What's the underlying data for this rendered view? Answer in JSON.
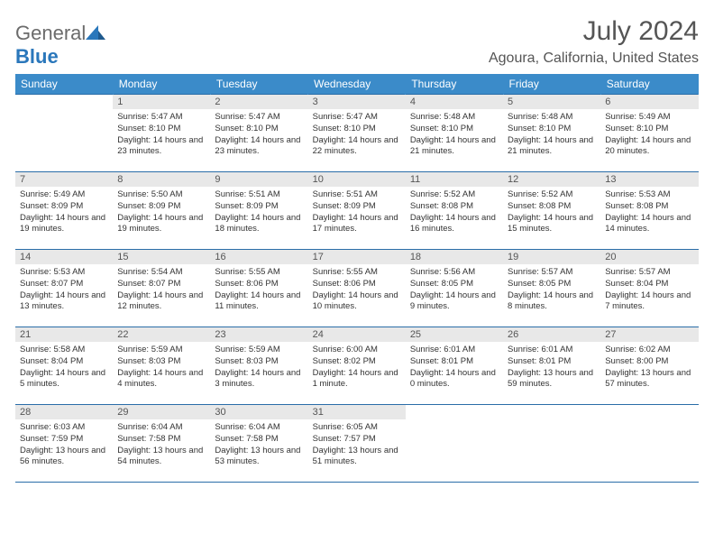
{
  "logo": {
    "text_general": "General",
    "text_blue": "Blue"
  },
  "title": "July 2024",
  "location": "Agoura, California, United States",
  "colors": {
    "header_bg": "#3b8bc9",
    "header_text": "#ffffff",
    "daynum_bg": "#e8e8e8",
    "border": "#2a6da8",
    "body_text": "#333333",
    "title_text": "#555555",
    "logo_gray": "#6b6b6b",
    "logo_blue": "#2a77bb"
  },
  "day_headers": [
    "Sunday",
    "Monday",
    "Tuesday",
    "Wednesday",
    "Thursday",
    "Friday",
    "Saturday"
  ],
  "weeks": [
    [
      {
        "n": "",
        "sunrise": "",
        "sunset": "",
        "daylight": ""
      },
      {
        "n": "1",
        "sunrise": "Sunrise: 5:47 AM",
        "sunset": "Sunset: 8:10 PM",
        "daylight": "Daylight: 14 hours and 23 minutes."
      },
      {
        "n": "2",
        "sunrise": "Sunrise: 5:47 AM",
        "sunset": "Sunset: 8:10 PM",
        "daylight": "Daylight: 14 hours and 23 minutes."
      },
      {
        "n": "3",
        "sunrise": "Sunrise: 5:47 AM",
        "sunset": "Sunset: 8:10 PM",
        "daylight": "Daylight: 14 hours and 22 minutes."
      },
      {
        "n": "4",
        "sunrise": "Sunrise: 5:48 AM",
        "sunset": "Sunset: 8:10 PM",
        "daylight": "Daylight: 14 hours and 21 minutes."
      },
      {
        "n": "5",
        "sunrise": "Sunrise: 5:48 AM",
        "sunset": "Sunset: 8:10 PM",
        "daylight": "Daylight: 14 hours and 21 minutes."
      },
      {
        "n": "6",
        "sunrise": "Sunrise: 5:49 AM",
        "sunset": "Sunset: 8:10 PM",
        "daylight": "Daylight: 14 hours and 20 minutes."
      }
    ],
    [
      {
        "n": "7",
        "sunrise": "Sunrise: 5:49 AM",
        "sunset": "Sunset: 8:09 PM",
        "daylight": "Daylight: 14 hours and 19 minutes."
      },
      {
        "n": "8",
        "sunrise": "Sunrise: 5:50 AM",
        "sunset": "Sunset: 8:09 PM",
        "daylight": "Daylight: 14 hours and 19 minutes."
      },
      {
        "n": "9",
        "sunrise": "Sunrise: 5:51 AM",
        "sunset": "Sunset: 8:09 PM",
        "daylight": "Daylight: 14 hours and 18 minutes."
      },
      {
        "n": "10",
        "sunrise": "Sunrise: 5:51 AM",
        "sunset": "Sunset: 8:09 PM",
        "daylight": "Daylight: 14 hours and 17 minutes."
      },
      {
        "n": "11",
        "sunrise": "Sunrise: 5:52 AM",
        "sunset": "Sunset: 8:08 PM",
        "daylight": "Daylight: 14 hours and 16 minutes."
      },
      {
        "n": "12",
        "sunrise": "Sunrise: 5:52 AM",
        "sunset": "Sunset: 8:08 PM",
        "daylight": "Daylight: 14 hours and 15 minutes."
      },
      {
        "n": "13",
        "sunrise": "Sunrise: 5:53 AM",
        "sunset": "Sunset: 8:08 PM",
        "daylight": "Daylight: 14 hours and 14 minutes."
      }
    ],
    [
      {
        "n": "14",
        "sunrise": "Sunrise: 5:53 AM",
        "sunset": "Sunset: 8:07 PM",
        "daylight": "Daylight: 14 hours and 13 minutes."
      },
      {
        "n": "15",
        "sunrise": "Sunrise: 5:54 AM",
        "sunset": "Sunset: 8:07 PM",
        "daylight": "Daylight: 14 hours and 12 minutes."
      },
      {
        "n": "16",
        "sunrise": "Sunrise: 5:55 AM",
        "sunset": "Sunset: 8:06 PM",
        "daylight": "Daylight: 14 hours and 11 minutes."
      },
      {
        "n": "17",
        "sunrise": "Sunrise: 5:55 AM",
        "sunset": "Sunset: 8:06 PM",
        "daylight": "Daylight: 14 hours and 10 minutes."
      },
      {
        "n": "18",
        "sunrise": "Sunrise: 5:56 AM",
        "sunset": "Sunset: 8:05 PM",
        "daylight": "Daylight: 14 hours and 9 minutes."
      },
      {
        "n": "19",
        "sunrise": "Sunrise: 5:57 AM",
        "sunset": "Sunset: 8:05 PM",
        "daylight": "Daylight: 14 hours and 8 minutes."
      },
      {
        "n": "20",
        "sunrise": "Sunrise: 5:57 AM",
        "sunset": "Sunset: 8:04 PM",
        "daylight": "Daylight: 14 hours and 7 minutes."
      }
    ],
    [
      {
        "n": "21",
        "sunrise": "Sunrise: 5:58 AM",
        "sunset": "Sunset: 8:04 PM",
        "daylight": "Daylight: 14 hours and 5 minutes."
      },
      {
        "n": "22",
        "sunrise": "Sunrise: 5:59 AM",
        "sunset": "Sunset: 8:03 PM",
        "daylight": "Daylight: 14 hours and 4 minutes."
      },
      {
        "n": "23",
        "sunrise": "Sunrise: 5:59 AM",
        "sunset": "Sunset: 8:03 PM",
        "daylight": "Daylight: 14 hours and 3 minutes."
      },
      {
        "n": "24",
        "sunrise": "Sunrise: 6:00 AM",
        "sunset": "Sunset: 8:02 PM",
        "daylight": "Daylight: 14 hours and 1 minute."
      },
      {
        "n": "25",
        "sunrise": "Sunrise: 6:01 AM",
        "sunset": "Sunset: 8:01 PM",
        "daylight": "Daylight: 14 hours and 0 minutes."
      },
      {
        "n": "26",
        "sunrise": "Sunrise: 6:01 AM",
        "sunset": "Sunset: 8:01 PM",
        "daylight": "Daylight: 13 hours and 59 minutes."
      },
      {
        "n": "27",
        "sunrise": "Sunrise: 6:02 AM",
        "sunset": "Sunset: 8:00 PM",
        "daylight": "Daylight: 13 hours and 57 minutes."
      }
    ],
    [
      {
        "n": "28",
        "sunrise": "Sunrise: 6:03 AM",
        "sunset": "Sunset: 7:59 PM",
        "daylight": "Daylight: 13 hours and 56 minutes."
      },
      {
        "n": "29",
        "sunrise": "Sunrise: 6:04 AM",
        "sunset": "Sunset: 7:58 PM",
        "daylight": "Daylight: 13 hours and 54 minutes."
      },
      {
        "n": "30",
        "sunrise": "Sunrise: 6:04 AM",
        "sunset": "Sunset: 7:58 PM",
        "daylight": "Daylight: 13 hours and 53 minutes."
      },
      {
        "n": "31",
        "sunrise": "Sunrise: 6:05 AM",
        "sunset": "Sunset: 7:57 PM",
        "daylight": "Daylight: 13 hours and 51 minutes."
      },
      {
        "n": "",
        "sunrise": "",
        "sunset": "",
        "daylight": ""
      },
      {
        "n": "",
        "sunrise": "",
        "sunset": "",
        "daylight": ""
      },
      {
        "n": "",
        "sunrise": "",
        "sunset": "",
        "daylight": ""
      }
    ]
  ]
}
